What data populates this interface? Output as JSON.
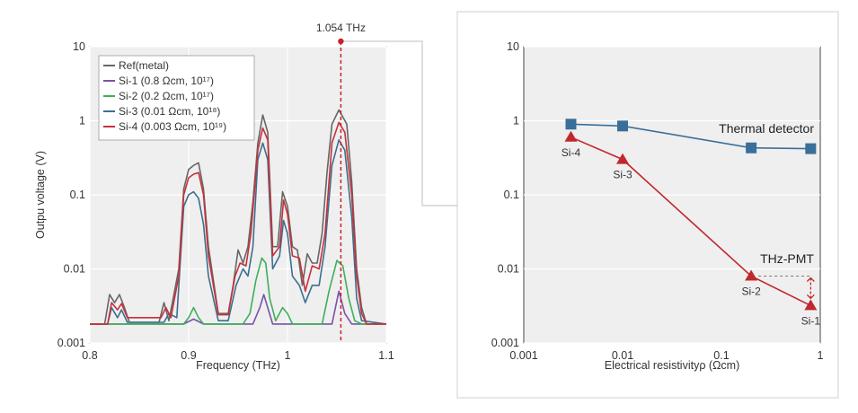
{
  "chart_data": [
    {
      "type": "line",
      "title": "",
      "xlabel": "Frequency (THz)",
      "ylabel": "Outpu voltage (V)",
      "xlim": [
        0.8,
        1.1
      ],
      "ylim": [
        0.001,
        10
      ],
      "yscale": "log",
      "x_ticks": [
        "0.8",
        "0.9",
        "1",
        "1.1"
      ],
      "y_ticks": [
        "0.001",
        "0.01",
        "0.1",
        "1",
        "10"
      ],
      "grid": true,
      "legend_position": "top-left",
      "marker_label": "1.054 THz",
      "marker_x": 1.054,
      "series": [
        {
          "name": "Ref(metal)",
          "color": "#666666",
          "points": [
            [
              0.8,
              0.0018
            ],
            [
              0.815,
              0.0018
            ],
            [
              0.82,
              0.0045
            ],
            [
              0.825,
              0.0035
            ],
            [
              0.83,
              0.0045
            ],
            [
              0.835,
              0.003
            ],
            [
              0.84,
              0.0019
            ],
            [
              0.87,
              0.0019
            ],
            [
              0.875,
              0.0035
            ],
            [
              0.88,
              0.002
            ],
            [
              0.89,
              0.01
            ],
            [
              0.895,
              0.12
            ],
            [
              0.9,
              0.22
            ],
            [
              0.905,
              0.25
            ],
            [
              0.91,
              0.27
            ],
            [
              0.915,
              0.12
            ],
            [
              0.92,
              0.02
            ],
            [
              0.93,
              0.0025
            ],
            [
              0.94,
              0.0025
            ],
            [
              0.945,
              0.006
            ],
            [
              0.95,
              0.018
            ],
            [
              0.955,
              0.012
            ],
            [
              0.96,
              0.02
            ],
            [
              0.965,
              0.08
            ],
            [
              0.97,
              0.5
            ],
            [
              0.975,
              1.2
            ],
            [
              0.98,
              0.7
            ],
            [
              0.985,
              0.02
            ],
            [
              0.99,
              0.02
            ],
            [
              0.995,
              0.11
            ],
            [
              1.0,
              0.07
            ],
            [
              1.005,
              0.02
            ],
            [
              1.01,
              0.018
            ],
            [
              1.015,
              0.006
            ],
            [
              1.02,
              0.016
            ],
            [
              1.025,
              0.012
            ],
            [
              1.03,
              0.012
            ],
            [
              1.035,
              0.03
            ],
            [
              1.04,
              0.2
            ],
            [
              1.045,
              0.9
            ],
            [
              1.052,
              1.4
            ],
            [
              1.06,
              0.9
            ],
            [
              1.065,
              0.15
            ],
            [
              1.07,
              0.01
            ],
            [
              1.075,
              0.003
            ],
            [
              1.08,
              0.0018
            ],
            [
              1.1,
              0.0018
            ]
          ]
        },
        {
          "name": "Si-1 (0.8 Ωcm, 10¹⁷)",
          "color": "#7a52a8",
          "points": [
            [
              0.8,
              0.0018
            ],
            [
              0.895,
              0.0018
            ],
            [
              0.905,
              0.0021
            ],
            [
              0.915,
              0.0018
            ],
            [
              0.965,
              0.0018
            ],
            [
              0.972,
              0.003
            ],
            [
              0.976,
              0.0045
            ],
            [
              0.98,
              0.003
            ],
            [
              0.985,
              0.0018
            ],
            [
              1.045,
              0.0018
            ],
            [
              1.052,
              0.005
            ],
            [
              1.058,
              0.0025
            ],
            [
              1.065,
              0.0018
            ],
            [
              1.1,
              0.0018
            ]
          ]
        },
        {
          "name": "Si-2 (0.2 Ωcm, 10¹⁷)",
          "color": "#3cb05a",
          "points": [
            [
              0.8,
              0.0018
            ],
            [
              0.895,
              0.0018
            ],
            [
              0.9,
              0.0022
            ],
            [
              0.905,
              0.003
            ],
            [
              0.91,
              0.0022
            ],
            [
              0.915,
              0.0018
            ],
            [
              0.955,
              0.0018
            ],
            [
              0.962,
              0.0025
            ],
            [
              0.968,
              0.007
            ],
            [
              0.974,
              0.014
            ],
            [
              0.978,
              0.012
            ],
            [
              0.982,
              0.004
            ],
            [
              0.988,
              0.002
            ],
            [
              0.995,
              0.003
            ],
            [
              1.0,
              0.0025
            ],
            [
              1.005,
              0.0018
            ],
            [
              1.035,
              0.0018
            ],
            [
              1.042,
              0.005
            ],
            [
              1.05,
              0.013
            ],
            [
              1.056,
              0.011
            ],
            [
              1.062,
              0.004
            ],
            [
              1.068,
              0.002
            ],
            [
              1.075,
              0.0018
            ],
            [
              1.1,
              0.0018
            ]
          ]
        },
        {
          "name": "Si-3 (0.01 Ωcm, 10¹⁸)",
          "color": "#3b6f8f",
          "points": [
            [
              0.8,
              0.0018
            ],
            [
              0.818,
              0.0018
            ],
            [
              0.822,
              0.003
            ],
            [
              0.828,
              0.0022
            ],
            [
              0.832,
              0.0028
            ],
            [
              0.838,
              0.0019
            ],
            [
              0.875,
              0.0019
            ],
            [
              0.88,
              0.0025
            ],
            [
              0.888,
              0.0022
            ],
            [
              0.895,
              0.07
            ],
            [
              0.9,
              0.1
            ],
            [
              0.905,
              0.11
            ],
            [
              0.91,
              0.09
            ],
            [
              0.915,
              0.04
            ],
            [
              0.92,
              0.008
            ],
            [
              0.93,
              0.002
            ],
            [
              0.94,
              0.002
            ],
            [
              0.948,
              0.006
            ],
            [
              0.955,
              0.01
            ],
            [
              0.96,
              0.008
            ],
            [
              0.965,
              0.02
            ],
            [
              0.97,
              0.3
            ],
            [
              0.975,
              0.5
            ],
            [
              0.98,
              0.3
            ],
            [
              0.985,
              0.01
            ],
            [
              0.992,
              0.015
            ],
            [
              0.996,
              0.045
            ],
            [
              1.0,
              0.03
            ],
            [
              1.005,
              0.008
            ],
            [
              1.012,
              0.006
            ],
            [
              1.018,
              0.0035
            ],
            [
              1.025,
              0.006
            ],
            [
              1.032,
              0.006
            ],
            [
              1.038,
              0.02
            ],
            [
              1.045,
              0.25
            ],
            [
              1.052,
              0.55
            ],
            [
              1.058,
              0.4
            ],
            [
              1.065,
              0.05
            ],
            [
              1.07,
              0.004
            ],
            [
              1.075,
              0.002
            ],
            [
              1.1,
              0.0018
            ]
          ]
        },
        {
          "name": "Si-4 (0.003 Ωcm, 10¹⁹)",
          "color": "#c8313a",
          "points": [
            [
              0.8,
              0.0018
            ],
            [
              0.818,
              0.0018
            ],
            [
              0.822,
              0.0035
            ],
            [
              0.828,
              0.0028
            ],
            [
              0.832,
              0.0034
            ],
            [
              0.838,
              0.0022
            ],
            [
              0.872,
              0.0022
            ],
            [
              0.877,
              0.003
            ],
            [
              0.882,
              0.0022
            ],
            [
              0.89,
              0.008
            ],
            [
              0.895,
              0.1
            ],
            [
              0.9,
              0.17
            ],
            [
              0.905,
              0.19
            ],
            [
              0.91,
              0.2
            ],
            [
              0.915,
              0.1
            ],
            [
              0.92,
              0.015
            ],
            [
              0.93,
              0.0024
            ],
            [
              0.94,
              0.0024
            ],
            [
              0.947,
              0.008
            ],
            [
              0.952,
              0.012
            ],
            [
              0.958,
              0.011
            ],
            [
              0.963,
              0.03
            ],
            [
              0.97,
              0.4
            ],
            [
              0.975,
              0.8
            ],
            [
              0.98,
              0.55
            ],
            [
              0.985,
              0.015
            ],
            [
              0.992,
              0.02
            ],
            [
              0.996,
              0.085
            ],
            [
              1.0,
              0.055
            ],
            [
              1.005,
              0.015
            ],
            [
              1.012,
              0.014
            ],
            [
              1.018,
              0.005
            ],
            [
              1.025,
              0.011
            ],
            [
              1.032,
              0.01
            ],
            [
              1.038,
              0.03
            ],
            [
              1.045,
              0.5
            ],
            [
              1.052,
              0.95
            ],
            [
              1.058,
              0.7
            ],
            [
              1.065,
              0.1
            ],
            [
              1.07,
              0.008
            ],
            [
              1.075,
              0.0025
            ],
            [
              1.08,
              0.0018
            ],
            [
              1.1,
              0.0018
            ]
          ]
        }
      ]
    },
    {
      "type": "line",
      "title": "",
      "xlabel": "Electrical resistivityρ (Ωcm)",
      "ylabel": "",
      "xscale": "log",
      "yscale": "log",
      "xlim": [
        0.001,
        1
      ],
      "ylim": [
        0.001,
        10
      ],
      "x_ticks": [
        "0.001",
        "0.01",
        "0.1",
        "1"
      ],
      "y_ticks": [
        "0.001",
        "0.01",
        "0.1",
        "1",
        "10"
      ],
      "grid": true,
      "series": [
        {
          "name": "Thermal detector",
          "color": "#3a6f9a",
          "marker": "square",
          "points": [
            [
              0.003,
              0.9
            ],
            [
              0.01,
              0.85
            ],
            [
              0.2,
              0.43
            ],
            [
              0.8,
              0.42
            ]
          ]
        },
        {
          "name": "THz-PMT",
          "color": "#c0282d",
          "marker": "triangle",
          "points": [
            [
              0.003,
              0.6
            ],
            [
              0.01,
              0.3
            ],
            [
              0.2,
              0.008
            ],
            [
              0.8,
              0.0032
            ]
          ],
          "point_labels": [
            "Si-4",
            "Si-3",
            "Si-2",
            "Si-1"
          ]
        }
      ]
    }
  ]
}
